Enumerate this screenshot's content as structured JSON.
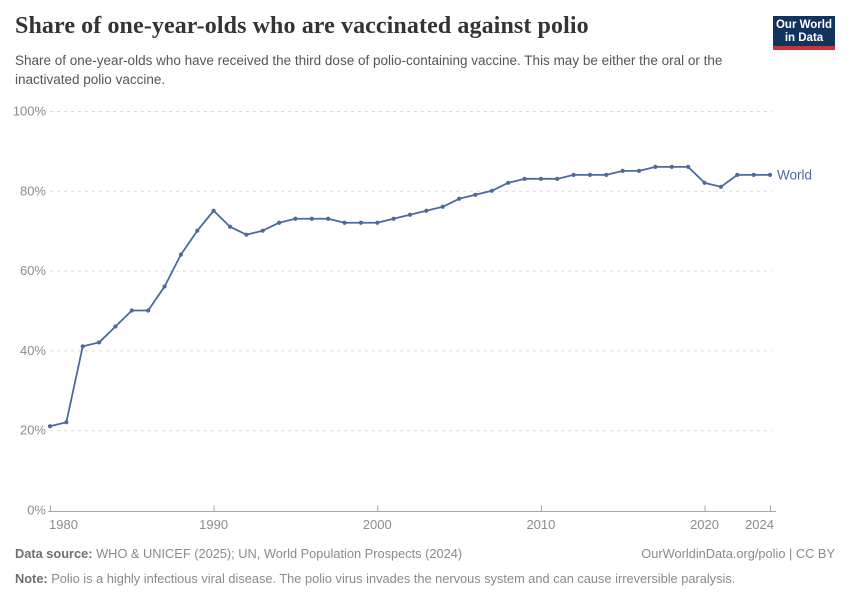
{
  "header": {
    "title": "Share of one-year-olds who are vaccinated against polio",
    "subtitle": "Share of one-year-olds who have received the third dose of polio-containing vaccine. This may be either the oral or the inactivated polio vaccine.",
    "logo": {
      "line1": "Our World",
      "line2": "in Data"
    }
  },
  "chart_data": {
    "type": "line",
    "title": "Share of one-year-olds who are vaccinated against polio",
    "x": [
      1980,
      1981,
      1982,
      1983,
      1984,
      1985,
      1986,
      1987,
      1988,
      1989,
      1990,
      1991,
      1992,
      1993,
      1994,
      1995,
      1996,
      1997,
      1998,
      1999,
      2000,
      2001,
      2002,
      2003,
      2004,
      2005,
      2006,
      2007,
      2008,
      2009,
      2010,
      2011,
      2012,
      2013,
      2014,
      2015,
      2016,
      2017,
      2018,
      2019,
      2020,
      2021,
      2022,
      2023,
      2024
    ],
    "series": [
      {
        "name": "World",
        "color": "#4c6a9c",
        "values": [
          21,
          22,
          41,
          42,
          46,
          50,
          50,
          56,
          64,
          70,
          75,
          71,
          69,
          70,
          72,
          73,
          73,
          73,
          72,
          72,
          72,
          73,
          74,
          75,
          76,
          78,
          79,
          80,
          82,
          83,
          83,
          83,
          84,
          84,
          84,
          85,
          85,
          86,
          86,
          86,
          82,
          81,
          84,
          84,
          84
        ]
      }
    ],
    "xlabel": "",
    "ylabel": "",
    "ylim": [
      0,
      100
    ],
    "yticks": [
      0,
      20,
      40,
      60,
      80,
      100
    ],
    "ytick_suffix": "%",
    "xticks": [
      1980,
      1990,
      2000,
      2010,
      2020,
      2024
    ],
    "grid": "horizontal-dashed",
    "legend": "end-of-line-label"
  },
  "footer": {
    "source_label": "Data source:",
    "source_text": " WHO & UNICEF (2025); UN, World Population Prospects (2024)",
    "rights": "OurWorldinData.org/polio | CC BY",
    "note_label": "Note:",
    "note_text": " Polio is a highly infectious viral disease. The polio virus invades the nervous system and can cause irreversible paralysis."
  },
  "colors": {
    "title": "#343434",
    "subtitle": "#555555",
    "footer": "#8a8a8a",
    "footer_bold": "#6f6f6f",
    "grid": "#d9d9d9",
    "axis": "#a8a8a8",
    "tick_label": "#8c8c8c",
    "line": "#4c6a9c",
    "logo_bg": "#11335c",
    "logo_stripe": "#cf3036",
    "logo_text": "#ffffff"
  }
}
